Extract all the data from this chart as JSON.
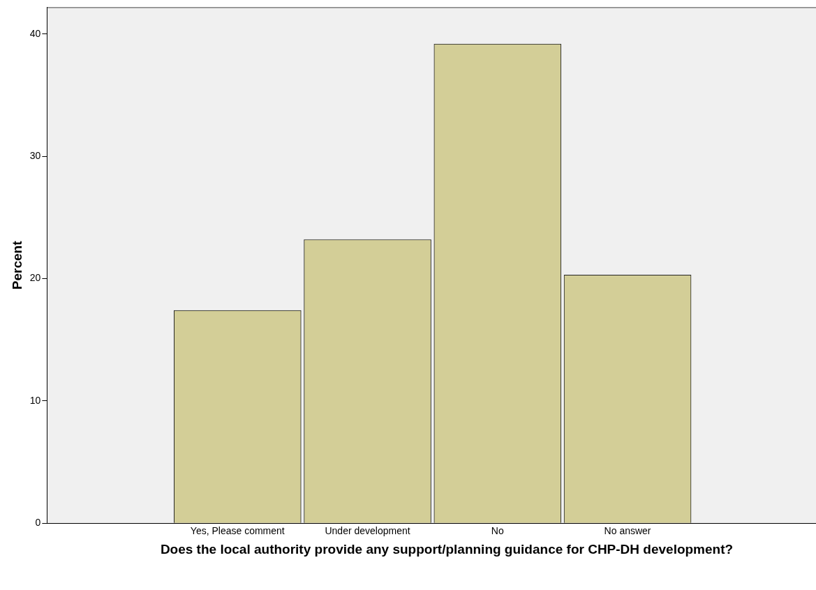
{
  "chart_data": {
    "type": "bar",
    "xlabel": "Does the local authority provide any support/planning guidance for CHP-DH development?",
    "ylabel": "Percent",
    "categories": [
      "Yes, Please comment",
      "Under development",
      "No",
      "No answer"
    ],
    "values": [
      17.4,
      23.2,
      39.2,
      20.3
    ],
    "color": "#d3ce97",
    "ylim": [
      0,
      42.2
    ],
    "yticks": [
      0,
      10,
      20,
      30,
      40
    ],
    "grid": false,
    "legend": false
  }
}
